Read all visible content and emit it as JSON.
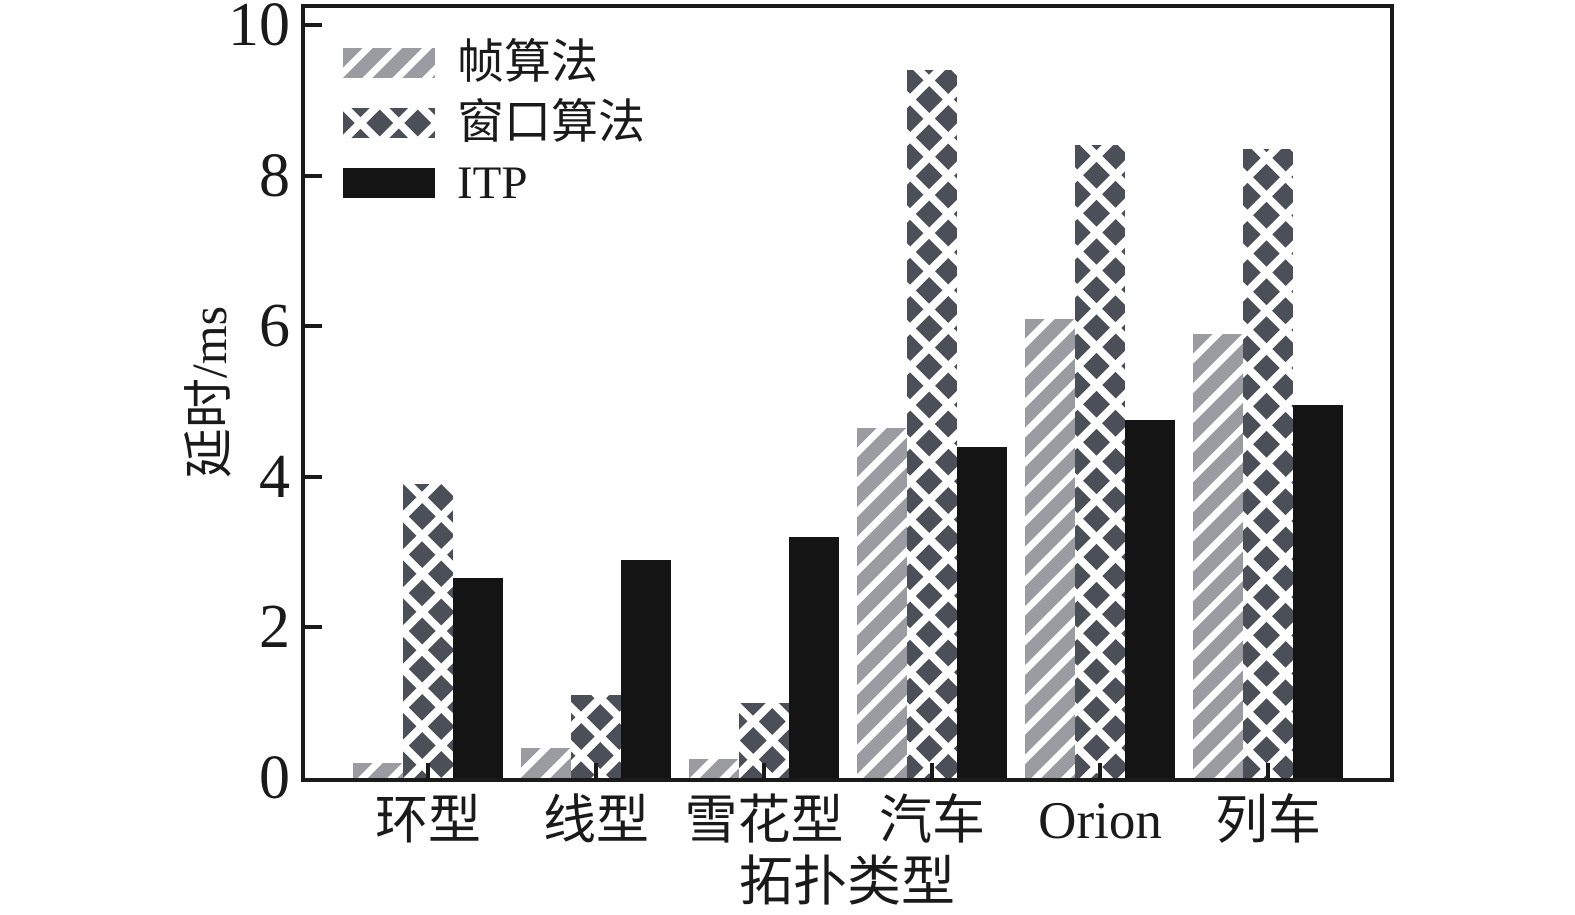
{
  "figure": {
    "background": "#ffffff",
    "text_color": "#1a1a1a",
    "axis_color": "#1a1a1a"
  },
  "chart_data": {
    "type": "bar",
    "title": "",
    "categories": [
      "环型",
      "线型",
      "雪花型",
      "汽车",
      "Orion",
      "列车"
    ],
    "series": [
      {
        "name": "帧算法",
        "pattern": "diagonal-hatch",
        "color": "#9b9ca1",
        "values": [
          0.2,
          0.4,
          0.25,
          4.65,
          6.1,
          5.9
        ]
      },
      {
        "name": "窗口算法",
        "pattern": "crosshatch",
        "color": "#4a4f58",
        "values": [
          3.9,
          1.1,
          1.0,
          9.4,
          8.4,
          8.35
        ]
      },
      {
        "name": "ITP",
        "pattern": "solid",
        "color": "#141414",
        "values": [
          2.65,
          2.9,
          3.2,
          4.4,
          4.75,
          4.95
        ]
      }
    ],
    "xlabel": "拓扑类型",
    "ylabel": "延时/ms",
    "ylim": [
      0,
      10
    ],
    "yticks": [
      0,
      2,
      4,
      6,
      8,
      10
    ],
    "legend_position": "upper-left",
    "grid": false
  }
}
